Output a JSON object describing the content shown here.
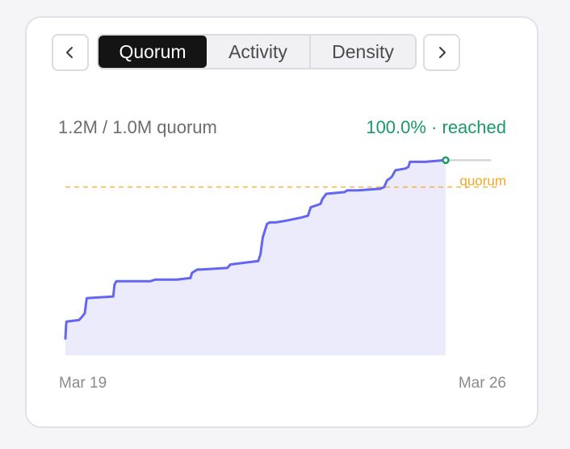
{
  "nav": {
    "prev_icon": "chevron-left-icon",
    "next_icon": "chevron-right-icon"
  },
  "tabs": [
    {
      "label": "Quorum",
      "active": true
    },
    {
      "label": "Activity",
      "active": false
    },
    {
      "label": "Density",
      "active": false
    }
  ],
  "stats": {
    "progress_text": "1.2M / 1.0M quorum",
    "status_text": "100.0% · reached"
  },
  "colors": {
    "line": "#6366f1",
    "fill": "#ebebfc",
    "quorum": "#f5a623",
    "status": "#1a9a68",
    "remaining": "#d4d4d8"
  },
  "chart_data": {
    "type": "area",
    "x_tick_labels": [
      "Mar 19",
      "Mar 26"
    ],
    "threshold_label": "quorum",
    "xlim": [
      0,
      100
    ],
    "ylim": [
      0,
      1.2
    ],
    "threshold": 1.0,
    "remaining_until": 112,
    "x": [
      0,
      0.2,
      0.3,
      3.6,
      4.4,
      5.1,
      5.6,
      12.6,
      12.9,
      13.4,
      22.3,
      23.6,
      29.3,
      32.9,
      33.3,
      34.7,
      35.6,
      42.6,
      43.4,
      50.7,
      51.3,
      51.9,
      53.0,
      53.7,
      55.3,
      58.0,
      62.2,
      63.8,
      64.5,
      67.1,
      67.6,
      68.6,
      73.4,
      74.1,
      76.9,
      82.8,
      83.8,
      84.6,
      85.8,
      86.8,
      89.4,
      90.2,
      90.6,
      94.6,
      100
    ],
    "y": [
      0.1,
      0.18,
      0.2,
      0.21,
      0.23,
      0.25,
      0.34,
      0.35,
      0.42,
      0.44,
      0.44,
      0.45,
      0.45,
      0.46,
      0.49,
      0.51,
      0.51,
      0.52,
      0.54,
      0.56,
      0.6,
      0.7,
      0.78,
      0.79,
      0.79,
      0.8,
      0.82,
      0.83,
      0.88,
      0.9,
      0.93,
      0.96,
      0.97,
      0.98,
      0.98,
      0.99,
      1.0,
      1.04,
      1.06,
      1.1,
      1.11,
      1.12,
      1.15,
      1.15,
      1.16
    ]
  }
}
